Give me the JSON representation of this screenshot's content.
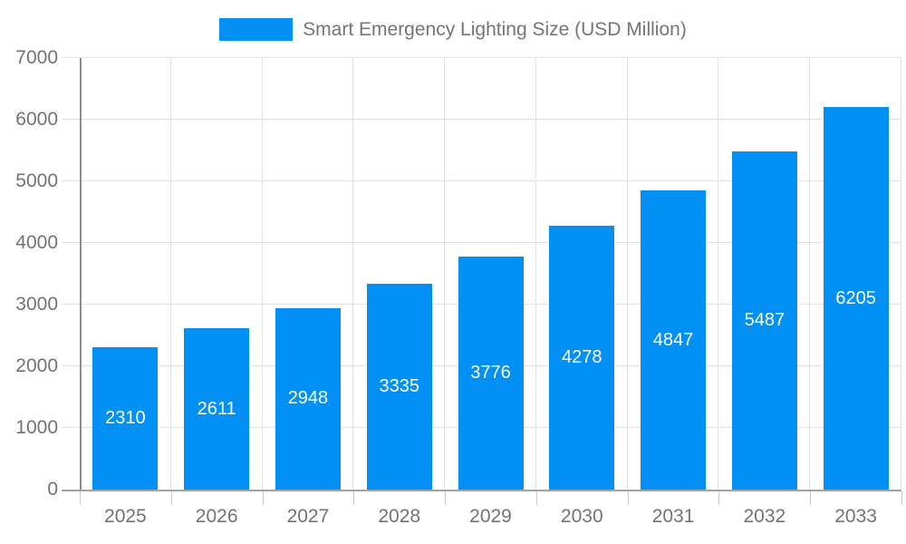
{
  "legend": {
    "label": "Smart Emergency Lighting Size (USD Million)"
  },
  "chart_data": {
    "type": "bar",
    "title": "Smart Emergency Lighting Size (USD Million)",
    "categories": [
      "2025",
      "2026",
      "2027",
      "2028",
      "2029",
      "2030",
      "2031",
      "2032",
      "2033"
    ],
    "values": [
      2310,
      2611,
      2948,
      3335,
      3776,
      4278,
      4847,
      5487,
      6205
    ],
    "xlabel": "",
    "ylabel": "",
    "ylim": [
      0,
      7000
    ],
    "ytick_step": 1000,
    "grid": true,
    "legend_position": "top-center",
    "value_labels": "inside-center-white",
    "colors": {
      "bar": "#0290f5",
      "value_label": "#ffffff",
      "gridline": "#e2e2e2",
      "axis_line": "#8c8c8c",
      "tick_label": "#737373",
      "legend_text": "#757575",
      "background": "#ffffff"
    }
  }
}
